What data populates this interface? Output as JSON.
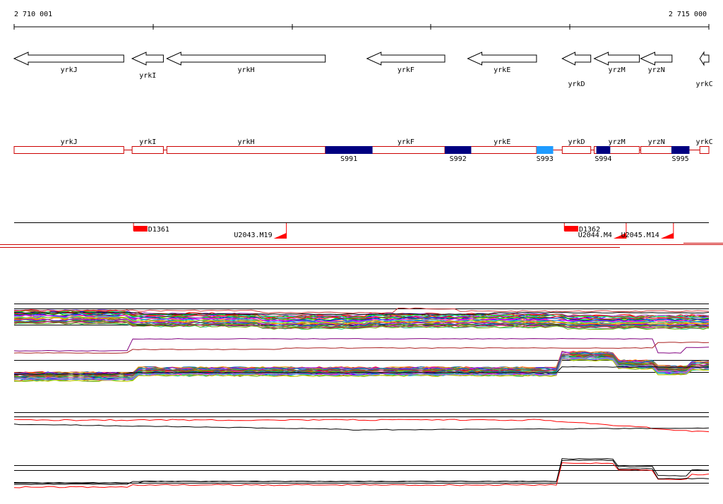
{
  "ruler": {
    "start_label": "2 710 001",
    "end_label": "2 715 000",
    "start_coord": 2710001,
    "end_coord": 2715000
  },
  "genes": [
    {
      "name": "yrkJ",
      "start": 2710001,
      "end": 2710790,
      "strand": "-"
    },
    {
      "name": "yrkI",
      "start": 2710850,
      "end": 2711075,
      "strand": "-"
    },
    {
      "name": "yrkH",
      "start": 2711100,
      "end": 2712240,
      "strand": "-"
    },
    {
      "name": "yrkF",
      "start": 2712540,
      "end": 2713100,
      "strand": "-"
    },
    {
      "name": "yrkE",
      "start": 2713265,
      "end": 2713760,
      "strand": "-"
    },
    {
      "name": "yrkD",
      "start": 2713945,
      "end": 2714150,
      "strand": "-"
    },
    {
      "name": "yrzM",
      "start": 2714175,
      "end": 2714500,
      "strand": "-"
    },
    {
      "name": "yrzN",
      "start": 2714510,
      "end": 2714735,
      "strand": "-"
    },
    {
      "name": "yrkC",
      "start": 2714935,
      "end": 2715000,
      "strand": "-"
    }
  ],
  "segments": [
    {
      "name": "S991",
      "start": 2712240,
      "end": 2712580,
      "color": "#000080"
    },
    {
      "name": "S992",
      "start": 2713100,
      "end": 2713290,
      "color": "#000080"
    },
    {
      "name": "S993",
      "start": 2713760,
      "end": 2713880,
      "color": "#1e9bff"
    },
    {
      "name": "S994",
      "start": 2714190,
      "end": 2714290,
      "color": "#000080"
    },
    {
      "name": "S995",
      "start": 2714730,
      "end": 2714860,
      "color": "#000080"
    }
  ],
  "features": [
    {
      "name": "D1361",
      "kind": "block",
      "start": 2710860,
      "end": 2710960
    },
    {
      "name": "U2043.M19",
      "kind": "up",
      "start": 2710860,
      "end": 2711960
    },
    {
      "name": "D1362",
      "kind": "block",
      "start": 2713960,
      "end": 2714060
    },
    {
      "name": "U2044.M4",
      "kind": "up",
      "start": 2713960,
      "end": 2714405
    },
    {
      "name": "U2045.M14",
      "kind": "up",
      "start": 2714405,
      "end": 2714745
    }
  ],
  "colors": {
    "gene_box": "#cc0000",
    "feature": "#ff0000",
    "frame": "#cc0000",
    "lines": "#000000"
  }
}
